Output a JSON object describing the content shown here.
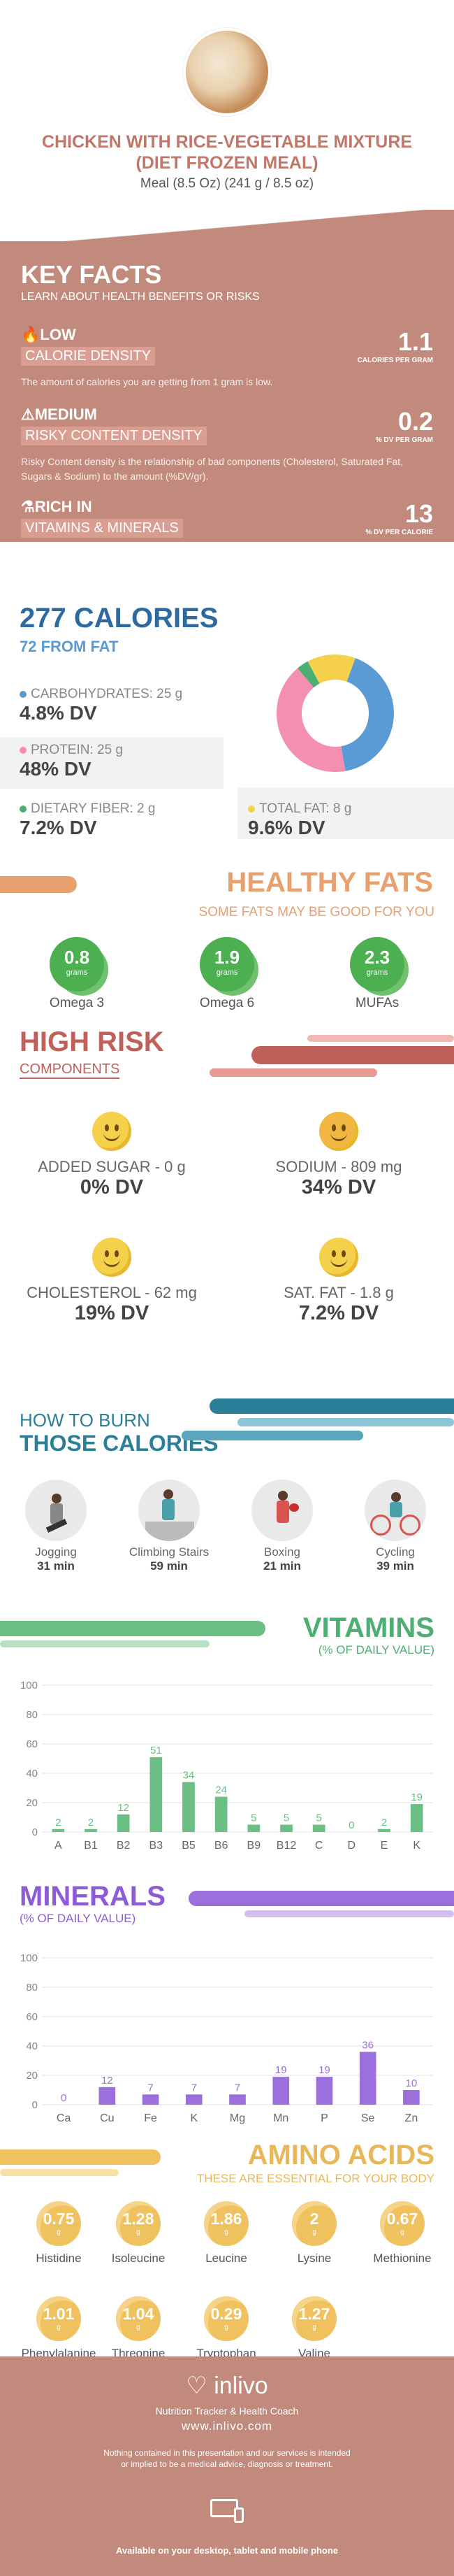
{
  "header": {
    "title": "CHICKEN WITH RICE-VEGETABLE MIXTURE (DIET FROZEN MEAL)",
    "serving": "Meal (8.5 Oz) (241 g / 8.5 oz)"
  },
  "key_facts": {
    "title": "KEY FACTS",
    "subtitle": "LEARN ABOUT HEALTH BENEFITS OR RISKS",
    "density": {
      "level": "LOW",
      "label": "CALORIE DENSITY",
      "value": "1.1",
      "unit": "CALORIES PER GRAM",
      "desc": "The amount of calories you are getting from 1 gram is low."
    },
    "risky": {
      "level": "MEDIUM",
      "label": "RISKY CONTENT DENSITY",
      "value": "0.2",
      "unit": "% DV PER GRAM",
      "desc": "Risky Content density is the relationship of bad components (Cholesterol, Saturated Fat, Sugars & Sodium) to the amount (%DV/gr)."
    },
    "rich": {
      "level": "RICH  IN",
      "label": "VITAMINS & MINERALS",
      "value": "13",
      "unit": "% DV PER CALORIE"
    }
  },
  "calories": {
    "title": "277 CALORIES",
    "from_fat": "72 FROM FAT",
    "carbs": {
      "label": "CARBOHYDRATES: 25 g",
      "dv": "4.8% DV",
      "color": "#5b9bd5"
    },
    "protein": {
      "label": "PROTEIN: 25 g",
      "dv": "48% DV",
      "color": "#f48fb1"
    },
    "fiber": {
      "label": "DIETARY FIBER: 2 g",
      "dv": "7.2% DV",
      "color": "#4caf71"
    },
    "fat": {
      "label": "TOTAL FAT: 8 g",
      "dv": "9.6% DV",
      "color": "#f5d04b"
    }
  },
  "healthy_fats": {
    "title": "HEALTHY FATS",
    "subtitle": "SOME FATS MAY BE GOOD FOR YOU",
    "unit": "grams",
    "items": [
      {
        "value": "0.8",
        "name": "Omega 3"
      },
      {
        "value": "1.9",
        "name": "Omega 6"
      },
      {
        "value": "2.3",
        "name": "MUFAs"
      }
    ]
  },
  "high_risk": {
    "title": "HIGH RISK",
    "subtitle": "COMPONENTS",
    "items": [
      {
        "label": "ADDED SUGAR - 0 g",
        "dv": "0% DV"
      },
      {
        "label": "SODIUM - 809 mg",
        "dv": "34% DV"
      },
      {
        "label": "CHOLESTEROL - 62 mg",
        "dv": "19% DV"
      },
      {
        "label": "SAT. FAT - 1.8 g",
        "dv": "7.2% DV"
      }
    ]
  },
  "burn": {
    "title1": "HOW TO BURN",
    "title2": "THOSE CALORIES",
    "items": [
      {
        "name": "Jogging",
        "minutes": "31 min"
      },
      {
        "name": "Climbing Stairs",
        "minutes": "59 min"
      },
      {
        "name": "Boxing",
        "minutes": "21 min"
      },
      {
        "name": "Cycling",
        "minutes": "39 min"
      }
    ]
  },
  "vitamins": {
    "title": "VITAMINS",
    "subtitle": "(% OF DAILY VALUE)"
  },
  "minerals": {
    "title": "MINERALS",
    "subtitle": "(% OF DAILY VALUE)"
  },
  "chart_data": [
    {
      "type": "bar",
      "title": "VITAMINS",
      "categories": [
        "A",
        "B1",
        "B2",
        "B3",
        "B5",
        "B6",
        "B9",
        "B12",
        "C",
        "D",
        "E",
        "K"
      ],
      "values": [
        2,
        2,
        12,
        51,
        34,
        24,
        5,
        5,
        5,
        0,
        2,
        19
      ],
      "ylim": [
        0,
        100
      ],
      "yticks": [
        0,
        20,
        40,
        60,
        80,
        100
      ],
      "color": "#6cbf84"
    },
    {
      "type": "bar",
      "title": "MINERALS",
      "categories": [
        "Ca",
        "Cu",
        "Fe",
        "K",
        "Mg",
        "Mn",
        "P",
        "Se",
        "Zn"
      ],
      "values": [
        0,
        12,
        7,
        7,
        7,
        19,
        19,
        36,
        10
      ],
      "ylim": [
        0,
        100
      ],
      "yticks": [
        0,
        20,
        40,
        60,
        80,
        100
      ],
      "color": "#9b6fdc"
    },
    {
      "type": "pie",
      "title": "277 CALORIES",
      "categories": [
        "CARBOHYDRATES",
        "PROTEIN",
        "DIETARY FIBER",
        "TOTAL FAT"
      ],
      "values": [
        25,
        25,
        2,
        8
      ],
      "colors": [
        "#5b9bd5",
        "#f48fb1",
        "#4caf71",
        "#f5d04b"
      ]
    }
  ],
  "amino": {
    "title": "AMINO ACIDS",
    "subtitle": "THESE ARE ESSENTIAL FOR YOUR BODY",
    "unit": "g",
    "items": [
      {
        "value": "0.75",
        "name": "Histidine"
      },
      {
        "value": "1.28",
        "name": "Isoleucine"
      },
      {
        "value": "1.86",
        "name": "Leucine"
      },
      {
        "value": "2",
        "name": "Lysine"
      },
      {
        "value": "0.67",
        "name": "Methionine"
      },
      {
        "value": "1.01",
        "name": "Phenylalanine"
      },
      {
        "value": "1.04",
        "name": "Threonine"
      },
      {
        "value": "0.29",
        "name": "Tryptophan"
      },
      {
        "value": "1.27",
        "name": "Valine"
      }
    ]
  },
  "footer": {
    "brand": "inlivo",
    "tagline": "Nutrition Tracker & Health Coach",
    "url": "www.inlivo.com",
    "disclaimer": "Nothing contained in this presentation and our services is intended or implied to be a medical advice, diagnosis or treatment.",
    "available": "Available on your desktop, tablet and mobile phone"
  }
}
